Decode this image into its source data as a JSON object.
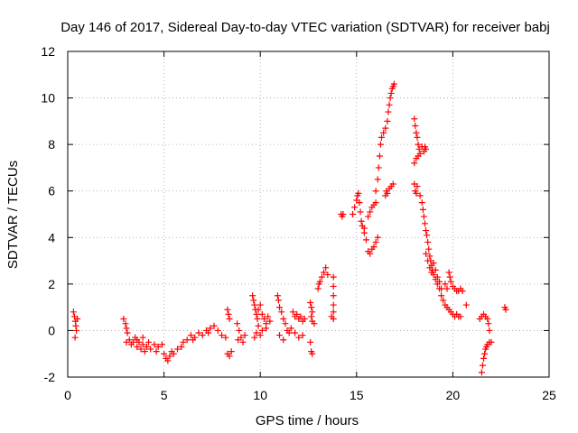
{
  "chart_data": {
    "type": "scatter",
    "title": "Day 146 of 2017, Sidereal Day-to-day VTEC variation (SDTVAR) for receiver babj",
    "xlabel": "GPS time / hours",
    "ylabel": "SDTVAR / TECUs",
    "xlim": [
      0,
      25
    ],
    "ylim": [
      -2,
      12
    ],
    "xticks": [
      "0",
      "5",
      "10",
      "15",
      "20",
      "25"
    ],
    "yticks": [
      "-2",
      "0",
      "2",
      "4",
      "6",
      "8",
      "10",
      "12"
    ],
    "grid": true,
    "marker": "+",
    "color": "#ff0000",
    "series": [
      {
        "name": "SDTVAR",
        "points": [
          [
            0.3,
            0.8
          ],
          [
            0.35,
            0.6
          ],
          [
            0.4,
            0.4
          ],
          [
            0.42,
            0.2
          ],
          [
            0.45,
            0.0
          ],
          [
            0.38,
            -0.3
          ],
          [
            0.5,
            0.5
          ],
          [
            2.9,
            0.5
          ],
          [
            3.0,
            0.3
          ],
          [
            3.05,
            0.1
          ],
          [
            3.1,
            -0.1
          ],
          [
            3.2,
            -0.4
          ],
          [
            3.3,
            -0.6
          ],
          [
            3.4,
            -0.5
          ],
          [
            3.5,
            -0.3
          ],
          [
            3.6,
            -0.7
          ],
          [
            3.7,
            -0.5
          ],
          [
            3.8,
            -0.8
          ],
          [
            3.9,
            -0.6
          ],
          [
            4.0,
            -0.9
          ],
          [
            4.1,
            -0.7
          ],
          [
            4.3,
            -0.8
          ],
          [
            4.5,
            -0.6
          ],
          [
            4.7,
            -0.7
          ],
          [
            4.9,
            -0.6
          ],
          [
            3.05,
            -0.5
          ],
          [
            3.6,
            -0.4
          ],
          [
            3.9,
            -0.3
          ],
          [
            4.2,
            -0.5
          ],
          [
            4.6,
            -0.9
          ],
          [
            5.0,
            -1.0
          ],
          [
            5.1,
            -1.2
          ],
          [
            5.2,
            -1.3
          ],
          [
            5.3,
            -1.1
          ],
          [
            5.5,
            -1.0
          ],
          [
            5.7,
            -0.8
          ],
          [
            5.9,
            -0.7
          ],
          [
            6.0,
            -0.5
          ],
          [
            6.2,
            -0.4
          ],
          [
            6.4,
            -0.2
          ],
          [
            6.6,
            -0.3
          ],
          [
            6.8,
            -0.1
          ],
          [
            7.0,
            -0.2
          ],
          [
            7.2,
            0.0
          ],
          [
            7.4,
            0.1
          ],
          [
            7.6,
            0.2
          ],
          [
            7.8,
            0.0
          ],
          [
            8.0,
            -0.2
          ],
          [
            8.2,
            -0.3
          ],
          [
            5.4,
            -0.9
          ],
          [
            6.5,
            -0.4
          ],
          [
            7.3,
            -0.1
          ],
          [
            8.3,
            0.9
          ],
          [
            8.35,
            0.7
          ],
          [
            8.4,
            0.5
          ],
          [
            8.3,
            -1.0
          ],
          [
            8.4,
            -1.1
          ],
          [
            8.5,
            -0.9
          ],
          [
            8.8,
            0.3
          ],
          [
            8.9,
            0.0
          ],
          [
            9.0,
            -0.3
          ],
          [
            9.1,
            -0.5
          ],
          [
            9.2,
            -0.2
          ],
          [
            8.85,
            -0.4
          ],
          [
            9.6,
            1.5
          ],
          [
            9.65,
            1.3
          ],
          [
            9.7,
            1.1
          ],
          [
            9.75,
            0.9
          ],
          [
            9.8,
            0.7
          ],
          [
            9.85,
            0.5
          ],
          [
            9.9,
            0.9
          ],
          [
            10.0,
            1.1
          ],
          [
            10.1,
            0.7
          ],
          [
            10.2,
            0.5
          ],
          [
            10.3,
            0.3
          ],
          [
            10.4,
            0.6
          ],
          [
            10.5,
            0.4
          ],
          [
            9.7,
            -0.3
          ],
          [
            9.8,
            -0.1
          ],
          [
            9.9,
            0.2
          ],
          [
            10.0,
            -0.2
          ],
          [
            10.1,
            0.0
          ],
          [
            10.3,
            0.1
          ],
          [
            10.9,
            1.5
          ],
          [
            10.95,
            1.3
          ],
          [
            11.0,
            1.0
          ],
          [
            11.1,
            0.8
          ],
          [
            11.2,
            0.5
          ],
          [
            11.3,
            0.3
          ],
          [
            11.0,
            -0.2
          ],
          [
            11.2,
            -0.4
          ],
          [
            11.4,
            0.0
          ],
          [
            11.5,
            -0.1
          ],
          [
            11.7,
            0.8
          ],
          [
            11.8,
            0.6
          ],
          [
            11.9,
            0.7
          ],
          [
            12.0,
            0.5
          ],
          [
            12.1,
            0.6
          ],
          [
            12.2,
            0.4
          ],
          [
            12.3,
            0.5
          ],
          [
            11.8,
            -0.1
          ],
          [
            12.0,
            -0.3
          ],
          [
            12.2,
            -0.2
          ],
          [
            11.6,
            0.1
          ],
          [
            12.6,
            1.2
          ],
          [
            12.65,
            1.0
          ],
          [
            12.7,
            0.8
          ],
          [
            12.65,
            0.6
          ],
          [
            12.7,
            0.4
          ],
          [
            12.6,
            -0.5
          ],
          [
            12.65,
            -0.9
          ],
          [
            12.7,
            -1.0
          ],
          [
            12.8,
            0.3
          ],
          [
            13.0,
            1.8
          ],
          [
            13.1,
            2.1
          ],
          [
            13.2,
            2.3
          ],
          [
            13.3,
            2.5
          ],
          [
            13.4,
            2.7
          ],
          [
            13.5,
            2.4
          ],
          [
            13.05,
            2.0
          ],
          [
            13.8,
            2.3
          ],
          [
            13.8,
            1.9
          ],
          [
            13.8,
            1.5
          ],
          [
            13.8,
            1.1
          ],
          [
            13.8,
            0.8
          ],
          [
            13.8,
            0.5
          ],
          [
            13.7,
            0.6
          ],
          [
            14.2,
            5.0
          ],
          [
            14.25,
            4.9
          ],
          [
            14.3,
            5.0
          ],
          [
            14.8,
            5.0
          ],
          [
            14.9,
            5.3
          ],
          [
            15.0,
            5.6
          ],
          [
            15.05,
            5.8
          ],
          [
            15.1,
            5.9
          ],
          [
            15.15,
            5.5
          ],
          [
            15.2,
            5.1
          ],
          [
            15.25,
            4.7
          ],
          [
            15.3,
            4.5
          ],
          [
            15.4,
            4.2
          ],
          [
            15.5,
            3.9
          ],
          [
            15.6,
            3.4
          ],
          [
            15.7,
            3.3
          ],
          [
            15.8,
            3.5
          ],
          [
            15.9,
            3.6
          ],
          [
            16.0,
            3.8
          ],
          [
            16.1,
            4.0
          ],
          [
            15.4,
            4.4
          ],
          [
            15.6,
            4.9
          ],
          [
            15.7,
            5.1
          ],
          [
            15.8,
            5.3
          ],
          [
            15.9,
            5.4
          ],
          [
            16.0,
            5.5
          ],
          [
            16.0,
            6.0
          ],
          [
            16.1,
            6.5
          ],
          [
            16.15,
            7.0
          ],
          [
            16.2,
            7.5
          ],
          [
            16.25,
            8.0
          ],
          [
            16.3,
            8.3
          ],
          [
            16.4,
            8.5
          ],
          [
            16.5,
            8.7
          ],
          [
            16.6,
            9.0
          ],
          [
            16.65,
            9.4
          ],
          [
            16.7,
            9.7
          ],
          [
            16.75,
            10.0
          ],
          [
            16.8,
            10.2
          ],
          [
            16.85,
            10.4
          ],
          [
            16.9,
            10.5
          ],
          [
            16.95,
            10.6
          ],
          [
            16.5,
            5.8
          ],
          [
            16.55,
            6.0
          ],
          [
            16.6,
            5.9
          ],
          [
            16.7,
            6.1
          ],
          [
            16.8,
            6.2
          ],
          [
            16.9,
            6.3
          ],
          [
            18.0,
            9.1
          ],
          [
            18.05,
            8.8
          ],
          [
            18.1,
            8.5
          ],
          [
            18.15,
            8.3
          ],
          [
            18.2,
            8.0
          ],
          [
            18.25,
            7.8
          ],
          [
            18.3,
            7.6
          ],
          [
            18.4,
            7.9
          ],
          [
            18.5,
            7.7
          ],
          [
            18.55,
            7.9
          ],
          [
            18.6,
            7.8
          ],
          [
            18.0,
            7.2
          ],
          [
            18.1,
            7.4
          ],
          [
            18.2,
            7.5
          ],
          [
            18.0,
            6.3
          ],
          [
            18.05,
            6.0
          ],
          [
            18.1,
            5.9
          ],
          [
            18.15,
            6.2
          ],
          [
            18.3,
            5.8
          ],
          [
            18.4,
            5.5
          ],
          [
            18.45,
            5.2
          ],
          [
            18.5,
            4.9
          ],
          [
            18.55,
            4.6
          ],
          [
            18.6,
            4.3
          ],
          [
            18.65,
            4.1
          ],
          [
            18.7,
            3.8
          ],
          [
            18.75,
            3.5
          ],
          [
            18.8,
            3.2
          ],
          [
            18.85,
            3.0
          ],
          [
            18.9,
            2.8
          ],
          [
            18.95,
            2.6
          ],
          [
            19.0,
            2.4
          ],
          [
            19.1,
            2.2
          ],
          [
            19.2,
            2.0
          ],
          [
            19.3,
            1.8
          ],
          [
            19.4,
            1.5
          ],
          [
            19.5,
            1.3
          ],
          [
            19.6,
            1.1
          ],
          [
            19.7,
            1.0
          ],
          [
            19.8,
            0.9
          ],
          [
            19.9,
            0.8
          ],
          [
            20.0,
            0.7
          ],
          [
            20.1,
            0.6
          ],
          [
            20.2,
            0.7
          ],
          [
            20.3,
            0.6
          ],
          [
            20.4,
            0.6
          ],
          [
            18.6,
            3.3
          ],
          [
            18.7,
            3.0
          ],
          [
            18.8,
            2.7
          ],
          [
            18.9,
            2.5
          ],
          [
            19.0,
            2.9
          ],
          [
            19.1,
            2.6
          ],
          [
            19.2,
            2.3
          ],
          [
            19.3,
            2.1
          ],
          [
            19.4,
            1.8
          ],
          [
            19.6,
            2.0
          ],
          [
            19.7,
            1.8
          ],
          [
            19.8,
            2.5
          ],
          [
            19.85,
            2.3
          ],
          [
            19.9,
            2.1
          ],
          [
            20.0,
            1.9
          ],
          [
            20.1,
            1.8
          ],
          [
            20.2,
            1.7
          ],
          [
            20.3,
            1.7
          ],
          [
            20.4,
            1.8
          ],
          [
            20.5,
            1.7
          ],
          [
            20.7,
            1.1
          ],
          [
            21.4,
            0.5
          ],
          [
            21.5,
            0.6
          ],
          [
            21.6,
            0.7
          ],
          [
            21.7,
            0.6
          ],
          [
            21.8,
            0.5
          ],
          [
            21.85,
            0.3
          ],
          [
            21.9,
            0.0
          ],
          [
            21.5,
            -1.8
          ],
          [
            21.55,
            -1.5
          ],
          [
            21.6,
            -1.2
          ],
          [
            21.65,
            -1.0
          ],
          [
            21.7,
            -0.8
          ],
          [
            21.75,
            -0.7
          ],
          [
            21.8,
            -0.6
          ],
          [
            21.9,
            -0.5
          ],
          [
            22.0,
            -0.5
          ],
          [
            22.7,
            1.0
          ],
          [
            22.75,
            0.9
          ]
        ]
      }
    ]
  }
}
